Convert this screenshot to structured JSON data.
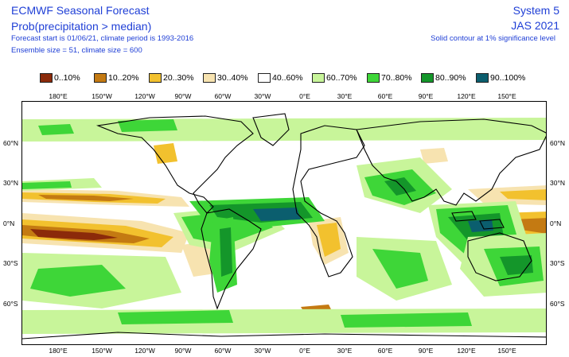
{
  "header": {
    "title": "ECMWF Seasonal Forecast",
    "subtitle": "Prob(precipitation > median)",
    "info_line_1": "Forecast start is 01/06/21, climate period is 1993-2016",
    "info_line_2": "Ensemble size = 51, climate size = 600",
    "system": "System 5",
    "period": "JAS 2021",
    "contour_note": "Solid contour at 1% significance level"
  },
  "legend": [
    {
      "label": "0..10%",
      "color": "#8b2a0a"
    },
    {
      "label": "10..20%",
      "color": "#c47a12"
    },
    {
      "label": "20..30%",
      "color": "#f2c12e"
    },
    {
      "label": "30..40%",
      "color": "#f7e3b0"
    },
    {
      "label": "40..60%",
      "color": "#ffffff"
    },
    {
      "label": "60..70%",
      "color": "#c8f59a"
    },
    {
      "label": "70..80%",
      "color": "#3ed638"
    },
    {
      "label": "80..90%",
      "color": "#14962a"
    },
    {
      "label": "90..100%",
      "color": "#0b5e6e"
    }
  ],
  "axes": {
    "lon_labels": [
      "180°E",
      "150°W",
      "120°W",
      "90°W",
      "60°W",
      "30°W",
      "0°E",
      "30°E",
      "60°E",
      "90°E",
      "120°E",
      "150°E"
    ],
    "lat_labels": [
      "60°N",
      "30°N",
      "0°N",
      "30°S",
      "60°S"
    ]
  }
}
